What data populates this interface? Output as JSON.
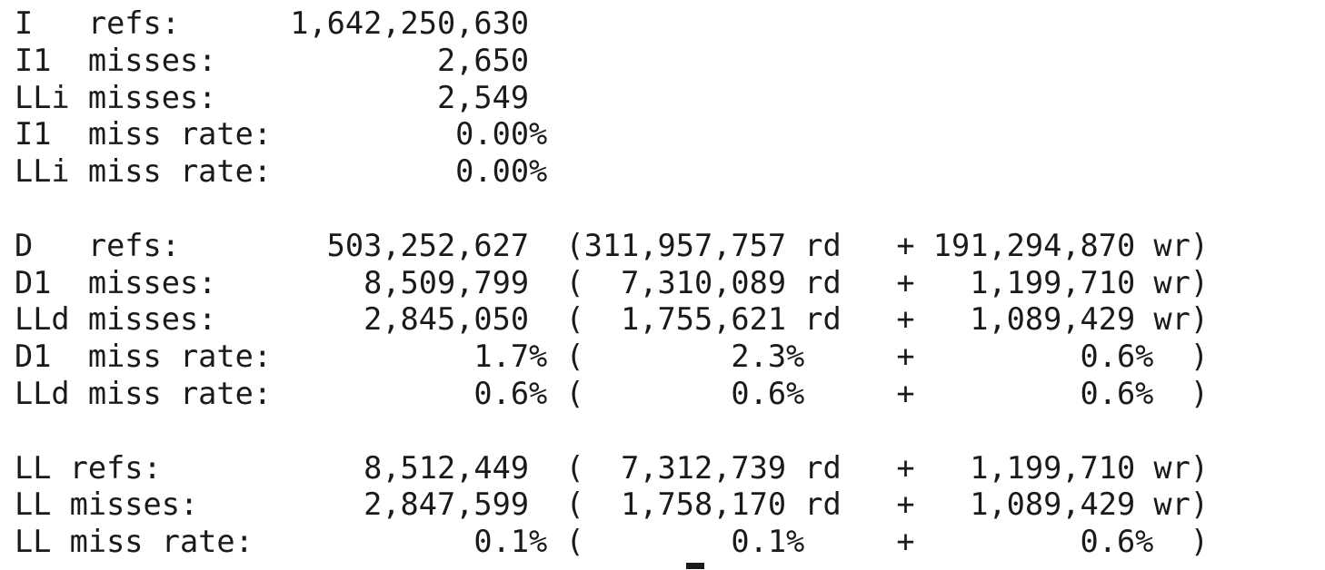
{
  "terminal": {
    "lines": [
      "I   refs:      1,642,250,630",
      "I1  misses:            2,650",
      "LLi misses:            2,549",
      "I1  miss rate:          0.00%",
      "LLi miss rate:          0.00%",
      "",
      "D   refs:        503,252,627  (311,957,757 rd   + 191,294,870 wr)",
      "D1  misses:        8,509,799  (  7,310,089 rd   +   1,199,710 wr)",
      "LLd misses:        2,845,050  (  1,755,621 rd   +   1,089,429 wr)",
      "D1  miss rate:           1.7% (        2.3%     +         0.6%  )",
      "LLd miss rate:           0.6% (        0.6%     +         0.6%  )",
      "",
      "LL refs:           8,512,449  (  7,312,739 rd   +   1,199,710 wr)",
      "LL misses:         2,847,599  (  1,758,170 rd   +   1,089,429 wr)",
      "LL miss rate:            0.1% (        0.1%     +         0.6%  )"
    ]
  }
}
